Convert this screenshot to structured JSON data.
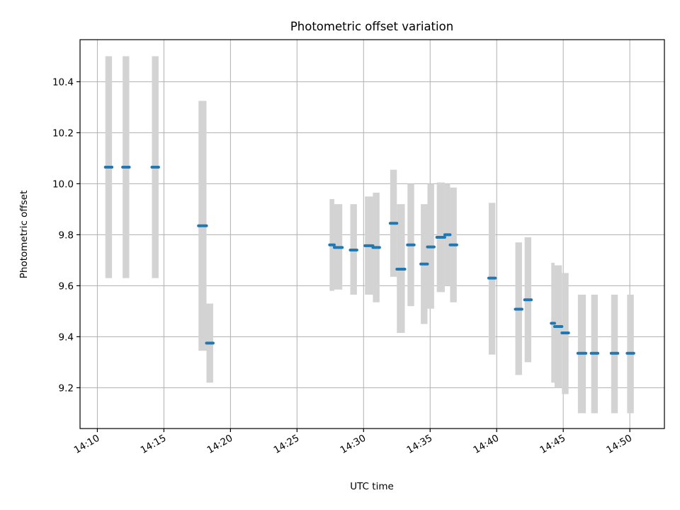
{
  "chart_data": {
    "type": "scatter",
    "title": "Photometric offset variation",
    "xlabel": "UTC time",
    "ylabel": "Photometric offset",
    "xlim": [
      8.7,
      52.6
    ],
    "ylim": [
      9.04,
      10.565
    ],
    "grid": true,
    "legend": "none",
    "colors": {
      "point": "#1f77b4",
      "errorbar": "#d3d3d3",
      "grid": "#b0b0b0"
    },
    "x_ticks": [
      {
        "value": 10,
        "label": "14:10"
      },
      {
        "value": 15,
        "label": "14:15"
      },
      {
        "value": 20,
        "label": "14:20"
      },
      {
        "value": 25,
        "label": "14:25"
      },
      {
        "value": 30,
        "label": "14:30"
      },
      {
        "value": 35,
        "label": "14:35"
      },
      {
        "value": 40,
        "label": "14:40"
      },
      {
        "value": 45,
        "label": "14:45"
      },
      {
        "value": 50,
        "label": "14:50"
      }
    ],
    "y_ticks": [
      {
        "value": 9.2,
        "label": "9.2"
      },
      {
        "value": 9.4,
        "label": "9.4"
      },
      {
        "value": 9.6,
        "label": "9.6"
      },
      {
        "value": 9.8,
        "label": "9.8"
      },
      {
        "value": 10.0,
        "label": "10.0"
      },
      {
        "value": 10.2,
        "label": "10.2"
      },
      {
        "value": 10.4,
        "label": "10.4"
      }
    ],
    "series": [
      {
        "name": "offset",
        "points": [
          {
            "x0": 10.6,
            "x1": 11.1,
            "y": 10.065,
            "low": 9.63,
            "high": 10.5
          },
          {
            "x0": 11.9,
            "x1": 12.4,
            "y": 10.065,
            "low": 9.63,
            "high": 10.5
          },
          {
            "x0": 14.1,
            "x1": 14.6,
            "y": 10.065,
            "low": 9.63,
            "high": 10.5
          },
          {
            "x0": 17.6,
            "x1": 18.2,
            "y": 9.835,
            "low": 9.345,
            "high": 10.325
          },
          {
            "x0": 18.2,
            "x1": 18.7,
            "y": 9.375,
            "low": 9.22,
            "high": 9.53
          },
          {
            "x0": 27.45,
            "x1": 27.8,
            "y": 9.76,
            "low": 9.58,
            "high": 9.94
          },
          {
            "x0": 27.8,
            "x1": 28.4,
            "y": 9.75,
            "low": 9.585,
            "high": 9.92
          },
          {
            "x0": 29.0,
            "x1": 29.5,
            "y": 9.74,
            "low": 9.565,
            "high": 9.92
          },
          {
            "x0": 30.1,
            "x1": 30.7,
            "y": 9.757,
            "low": 9.565,
            "high": 9.95
          },
          {
            "x0": 30.7,
            "x1": 31.2,
            "y": 9.75,
            "low": 9.535,
            "high": 9.965
          },
          {
            "x0": 32.0,
            "x1": 32.5,
            "y": 9.845,
            "low": 9.635,
            "high": 10.055
          },
          {
            "x0": 32.5,
            "x1": 33.1,
            "y": 9.665,
            "low": 9.415,
            "high": 9.92
          },
          {
            "x0": 33.3,
            "x1": 33.8,
            "y": 9.76,
            "low": 9.52,
            "high": 10.0
          },
          {
            "x0": 34.3,
            "x1": 34.8,
            "y": 9.685,
            "low": 9.45,
            "high": 9.92
          },
          {
            "x0": 34.8,
            "x1": 35.3,
            "y": 9.752,
            "low": 9.51,
            "high": 10.0
          },
          {
            "x0": 35.5,
            "x1": 36.1,
            "y": 9.79,
            "low": 9.575,
            "high": 10.005
          },
          {
            "x0": 36.1,
            "x1": 36.5,
            "y": 9.8,
            "low": 9.6,
            "high": 10.0
          },
          {
            "x0": 36.5,
            "x1": 37.0,
            "y": 9.76,
            "low": 9.535,
            "high": 9.985
          },
          {
            "x0": 39.4,
            "x1": 39.9,
            "y": 9.63,
            "low": 9.33,
            "high": 9.925
          },
          {
            "x0": 41.4,
            "x1": 41.9,
            "y": 9.508,
            "low": 9.25,
            "high": 9.77
          },
          {
            "x0": 42.1,
            "x1": 42.6,
            "y": 9.545,
            "low": 9.3,
            "high": 9.79
          },
          {
            "x0": 44.1,
            "x1": 44.35,
            "y": 9.453,
            "low": 9.22,
            "high": 9.69
          },
          {
            "x0": 44.35,
            "x1": 44.9,
            "y": 9.44,
            "low": 9.2,
            "high": 9.68
          },
          {
            "x0": 44.9,
            "x1": 45.4,
            "y": 9.415,
            "low": 9.175,
            "high": 9.65
          },
          {
            "x0": 46.1,
            "x1": 46.7,
            "y": 9.335,
            "low": 9.1,
            "high": 9.565
          },
          {
            "x0": 47.1,
            "x1": 47.6,
            "y": 9.335,
            "low": 9.1,
            "high": 9.565
          },
          {
            "x0": 48.6,
            "x1": 49.1,
            "y": 9.335,
            "low": 9.1,
            "high": 9.565
          },
          {
            "x0": 49.8,
            "x1": 50.3,
            "y": 9.335,
            "low": 9.1,
            "high": 9.565
          }
        ]
      }
    ]
  }
}
